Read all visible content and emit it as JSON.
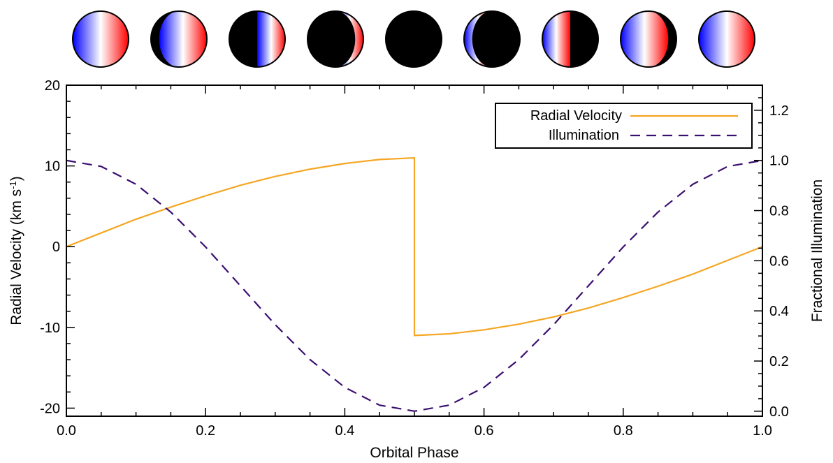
{
  "chart_data": {
    "type": "line",
    "xlabel": "Orbital Phase",
    "ylabel": "Radial Velocity (km s",
    "ylabel_sup": "-1",
    "ylabel_close": ")",
    "y2label": "Fractional Illumination",
    "xlim": [
      0.0,
      1.0
    ],
    "ylim": [
      -21,
      20
    ],
    "y2lim": [
      -0.02,
      1.3
    ],
    "x_ticks": [
      "0.0",
      "0.2",
      "0.4",
      "0.6",
      "0.8",
      "1.0"
    ],
    "y_ticks": [
      "-20",
      "-10",
      "0",
      "10",
      "20"
    ],
    "y2_ticks": [
      "0.0",
      "0.2",
      "0.4",
      "0.6",
      "0.8",
      "1.0",
      "1.2"
    ],
    "legend_position": "top-right",
    "series": [
      {
        "name": "Radial Velocity",
        "color": "#f5a623",
        "style": "solid",
        "x": [
          0.0,
          0.05,
          0.1,
          0.15,
          0.2,
          0.25,
          0.3,
          0.35,
          0.4,
          0.45,
          0.5,
          0.5,
          0.55,
          0.6,
          0.65,
          0.7,
          0.75,
          0.8,
          0.85,
          0.9,
          0.95,
          1.0
        ],
        "values": [
          0.0,
          1.7,
          3.4,
          4.9,
          6.3,
          7.6,
          8.7,
          9.6,
          10.3,
          10.8,
          11.0,
          -11.0,
          -10.8,
          -10.3,
          -9.6,
          -8.7,
          -7.6,
          -6.3,
          -4.9,
          -3.4,
          -1.7,
          0.0
        ]
      },
      {
        "name": "Illumination",
        "color": "#3b0f70",
        "style": "dashed",
        "axis": "right",
        "x": [
          0.0,
          0.05,
          0.1,
          0.15,
          0.2,
          0.25,
          0.3,
          0.35,
          0.4,
          0.45,
          0.5,
          0.55,
          0.6,
          0.65,
          0.7,
          0.75,
          0.8,
          0.85,
          0.9,
          0.95,
          1.0
        ],
        "values": [
          1.0,
          0.976,
          0.905,
          0.794,
          0.655,
          0.5,
          0.345,
          0.206,
          0.095,
          0.024,
          0.0,
          0.024,
          0.095,
          0.206,
          0.345,
          0.5,
          0.655,
          0.794,
          0.905,
          0.976,
          1.0
        ]
      }
    ],
    "phase_icons": {
      "phases": [
        0.0,
        0.125,
        0.25,
        0.375,
        0.5,
        0.625,
        0.75,
        0.875,
        1.0
      ],
      "colors": {
        "approach": "#0000ff",
        "recede": "#ff0000",
        "center": "#ffffff",
        "dark": "#000000"
      }
    }
  }
}
